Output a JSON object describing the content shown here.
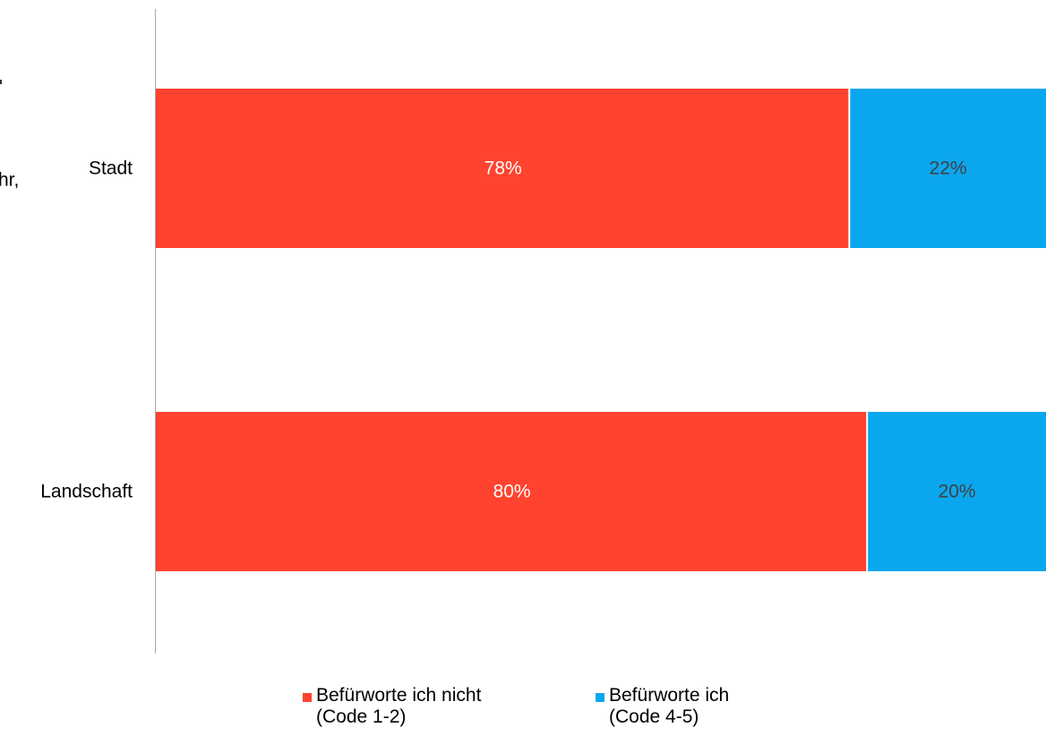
{
  "chart_data": {
    "type": "bar",
    "orientation": "horizontal",
    "stacked": "percent",
    "categories": [
      "Stadt",
      "Landschaft"
    ],
    "series": [
      {
        "name": "Befürworte ich nicht\n(Code 1-2)",
        "values": [
          78,
          80
        ],
        "labels": [
          "78%",
          "80%"
        ],
        "color": "#FF432E",
        "label_color": "#FFFFFF"
      },
      {
        "name": "Befürworte ich\n(Code 4-5)",
        "values": [
          22,
          20
        ],
        "labels": [
          "22%",
          "20%"
        ],
        "color": "#0BA7EE",
        "label_color": "#404040"
      }
    ],
    "xlim": [
      0,
      100
    ],
    "grid": false,
    "legend_position": "bottom",
    "cutoff_text": [
      "hr,"
    ]
  }
}
